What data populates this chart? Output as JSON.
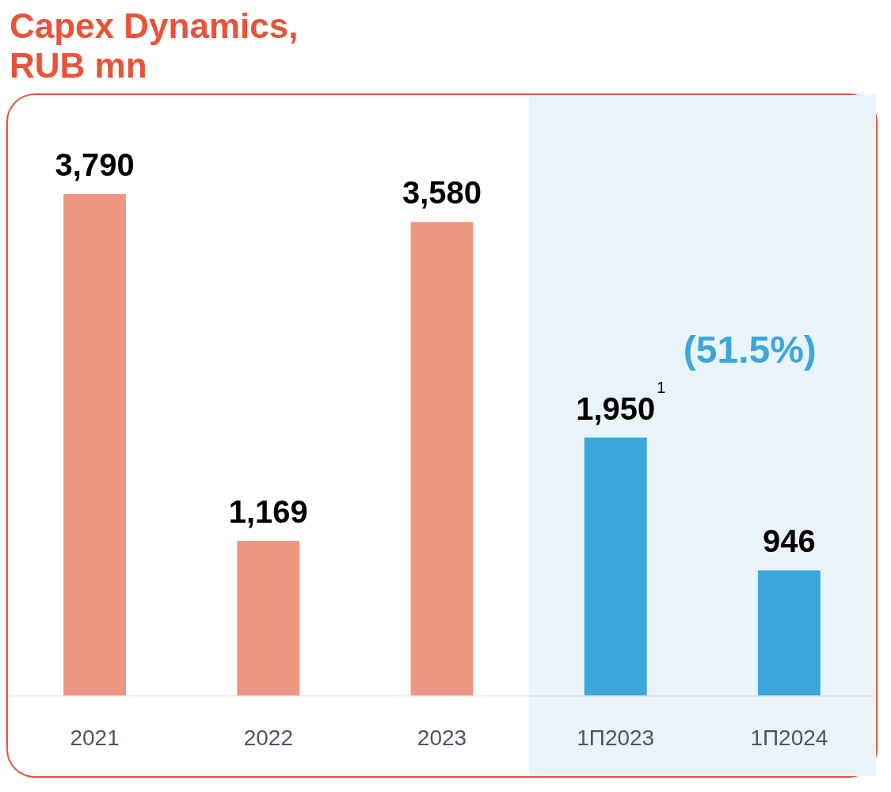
{
  "chart_data": {
    "type": "bar",
    "title": "Capex Dynamics, RUB mn",
    "categories": [
      "2021",
      "2022",
      "2023",
      "1П2023",
      "1П2024"
    ],
    "values": [
      3790,
      1169,
      3580,
      1950,
      946
    ],
    "colors": [
      "#ee9682",
      "#ee9682",
      "#ee9682",
      "#3da7db",
      "#3da7db"
    ],
    "value_labels": [
      "3,790",
      "1,169",
      "3,580",
      "1,950$^{1}$",
      "946"
    ],
    "bands": [
      {
        "axis": "x",
        "from": "1П2023",
        "to": "1П2024",
        "color": "#e8f4fa"
      }
    ],
    "annotations": [
      "(51.5%)"
    ],
    "grid": false,
    "legend": false
  }
}
